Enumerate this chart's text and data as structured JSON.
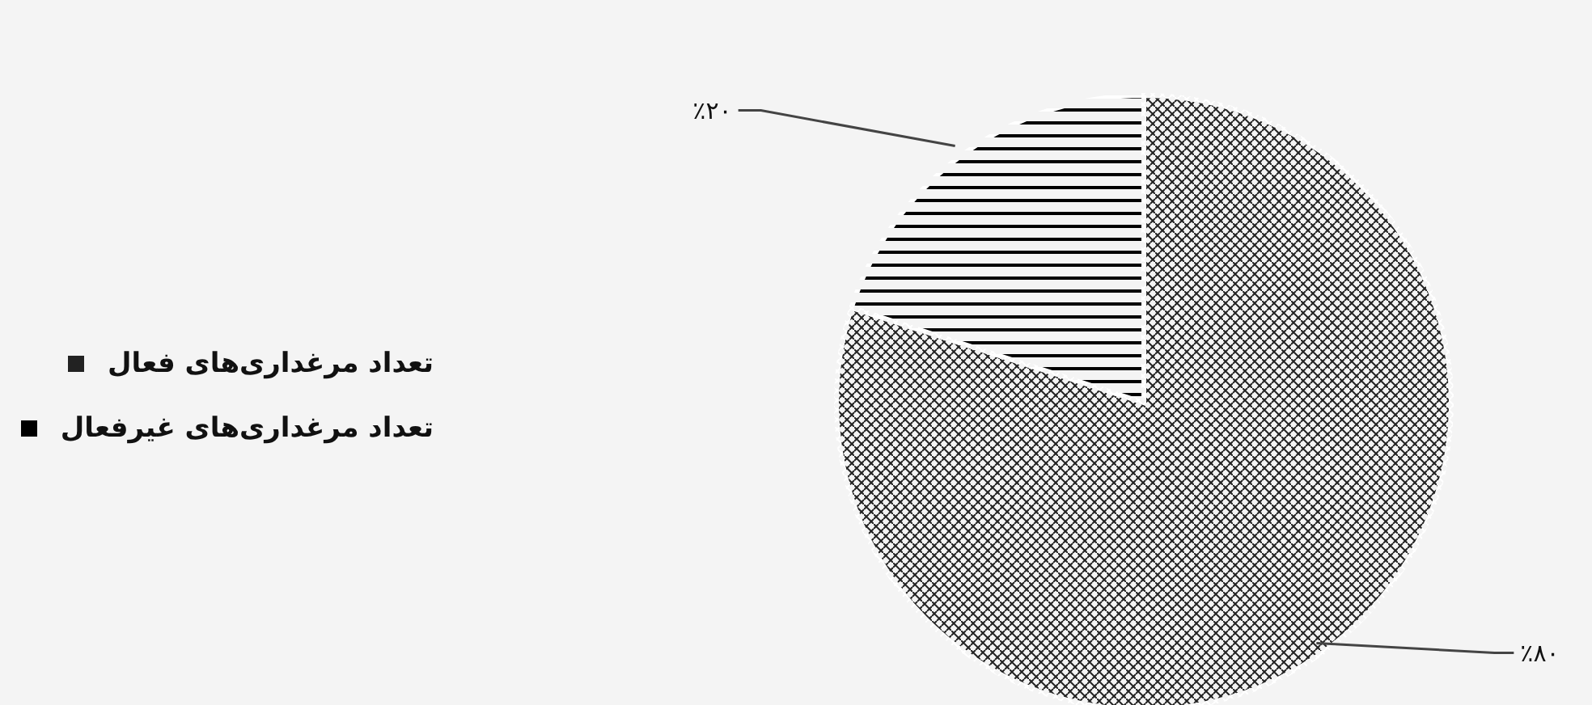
{
  "chart_data": {
    "type": "pie",
    "categories": [
      "تعداد مرغداری‌های فعال",
      "تعداد مرغداری‌های غیرفعال"
    ],
    "values": [
      80,
      20
    ],
    "colors": [
      "#222222",
      "#000000"
    ],
    "value_labels": [
      "٪۸۰",
      "٪۲۰"
    ],
    "legend": "left"
  }
}
